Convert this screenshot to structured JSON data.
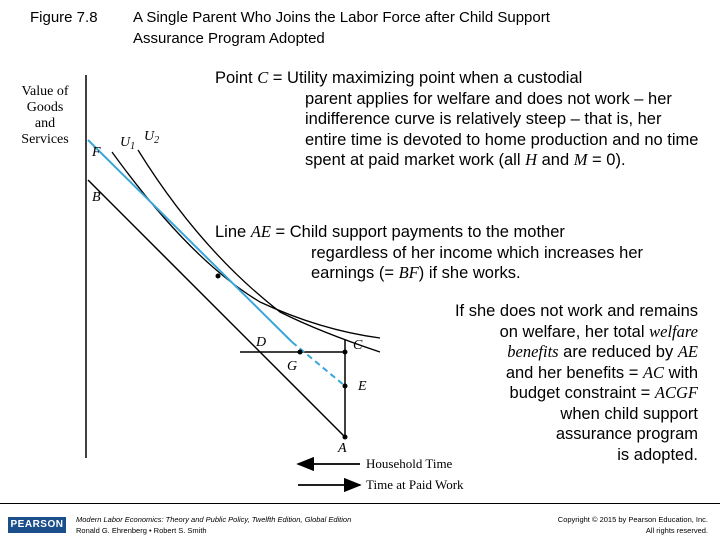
{
  "figure": {
    "number": "Figure 7.8",
    "title_line1": "A Single Parent Who Joins the Labor Force after Child Support",
    "title_line2": "Assurance Program Adopted"
  },
  "diagram": {
    "y_axis_label": [
      "Value of",
      "Goods",
      "and",
      "Services"
    ],
    "point_labels": {
      "F": "F",
      "B": "B",
      "U1": "U",
      "U1_sub": "1",
      "U2": "U",
      "U2_sub": "2",
      "D": "D",
      "C": "C",
      "G": "G",
      "E": "E",
      "A": "A"
    },
    "household_time": "Household Time",
    "paid_work_time": "Time at Paid Work",
    "colors": {
      "budget_line": "#000000",
      "blue_line": "#3aa6d8",
      "curve": "#000000"
    }
  },
  "notes": {
    "note1_lead_pre": "Point ",
    "note1_lead_sym": "C",
    "note1_lead_post": " = Utility maximizing point when a custodial",
    "note1_body_pre": "parent applies for welfare and does not work – her indifference curve is relatively steep – that is, her entire time is devoted to home production and no time spent at paid market work (all ",
    "note1_H": "H",
    "note1_and": " and ",
    "note1_M": "M",
    "note1_post": " = 0).",
    "note2_lead_pre": "Line ",
    "note2_lead_sym": "AE",
    "note2_lead_post": " = Child support payments to the mother",
    "note2_body_pre": "regardless of her income which increases her earnings (= ",
    "note2_BF": "BF",
    "note2_post": ") if she works.",
    "note3_l1": "If she does not work and remains",
    "note3_l2a": "on welfare, her total ",
    "note3_l2b": "welfare",
    "note3_l3a": "benefits",
    "note3_l3b": " are reduced by ",
    "note3_l3c": "AE",
    "note3_l4a": "and her benefits = ",
    "note3_l4b": "AC",
    "note3_l4c": " with",
    "note3_l5a": "budget constraint = ",
    "note3_l5b": "ACGF",
    "note3_l6": "when child support",
    "note3_l7": "assurance program",
    "note3_l8": "is adopted."
  },
  "footer": {
    "logo": "PEARSON",
    "book_title": "Modern Labor Economics: Theory and Public Policy, Twelfth Edition, Global Edition",
    "authors": "Ronald G. Ehrenberg • Robert S. Smith",
    "copyright": "Copyright © 2015 by Pearson Education, Inc.",
    "rights": "All rights reserved."
  }
}
